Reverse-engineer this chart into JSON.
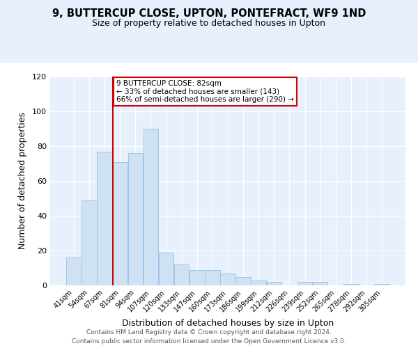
{
  "title": "9, BUTTERCUP CLOSE, UPTON, PONTEFRACT, WF9 1ND",
  "subtitle": "Size of property relative to detached houses in Upton",
  "xlabel": "Distribution of detached houses by size in Upton",
  "ylabel": "Number of detached properties",
  "bar_labels": [
    "41sqm",
    "54sqm",
    "67sqm",
    "81sqm",
    "94sqm",
    "107sqm",
    "120sqm",
    "133sqm",
    "147sqm",
    "160sqm",
    "173sqm",
    "186sqm",
    "199sqm",
    "212sqm",
    "226sqm",
    "239sqm",
    "252sqm",
    "265sqm",
    "278sqm",
    "292sqm",
    "305sqm"
  ],
  "bar_values": [
    16,
    49,
    77,
    71,
    76,
    90,
    19,
    12,
    9,
    9,
    7,
    5,
    3,
    2,
    0,
    2,
    2,
    0,
    1,
    0,
    1
  ],
  "bar_color": "#cfe2f3",
  "bar_edge_color": "#9fc5e8",
  "ylim": [
    0,
    120
  ],
  "yticks": [
    0,
    20,
    40,
    60,
    80,
    100,
    120
  ],
  "annotation_title": "9 BUTTERCUP CLOSE: 82sqm",
  "annotation_line1": "← 33% of detached houses are smaller (143)",
  "annotation_line2": "66% of semi-detached houses are larger (290) →",
  "annotation_box_color": "#ffffff",
  "annotation_box_edge_color": "#cc0000",
  "property_line_color": "#cc0000",
  "footer1": "Contains HM Land Registry data © Crown copyright and database right 2024.",
  "footer2": "Contains public sector information licensed under the Open Government Licence v3.0.",
  "bg_color": "#dce8f8",
  "plot_bg_color": "#e8f0fe",
  "grid_color": "#ffffff",
  "footer_bg": "#ffffff"
}
